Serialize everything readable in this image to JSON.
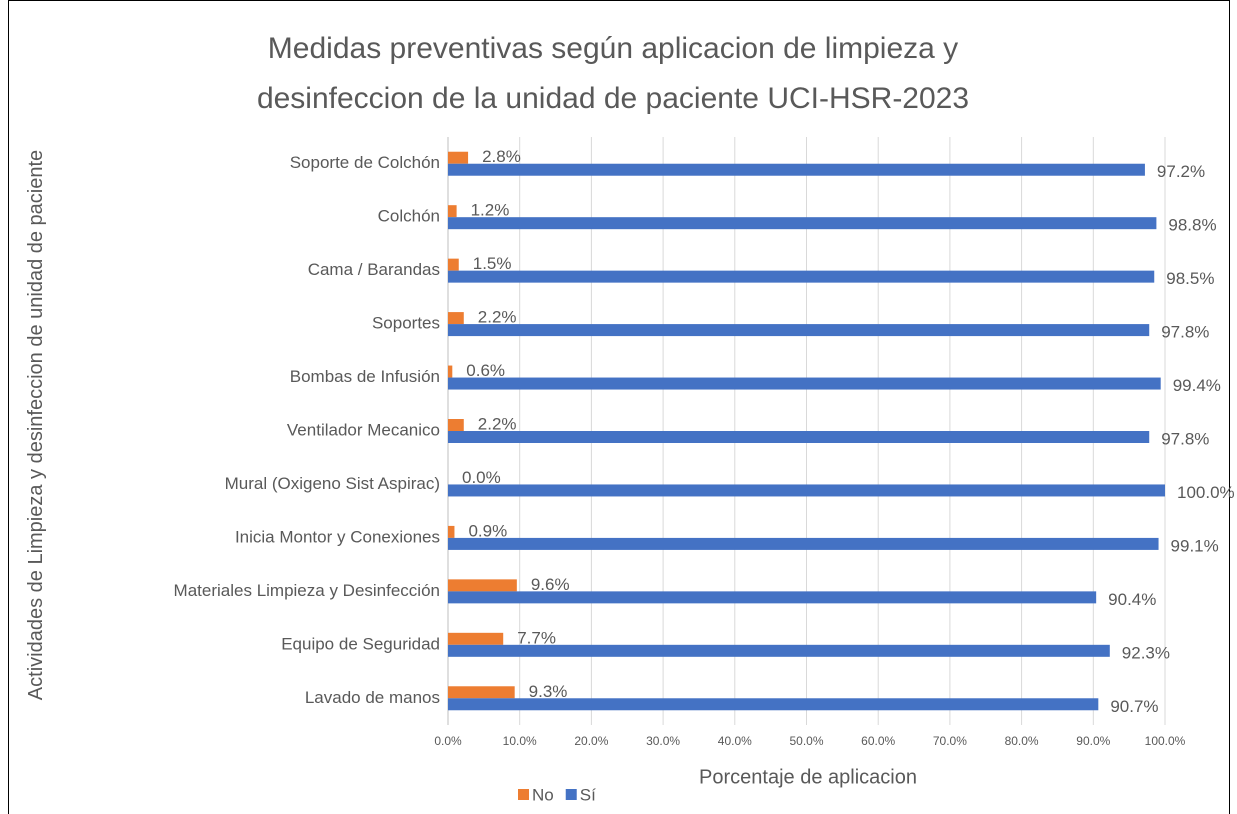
{
  "chart_data": {
    "type": "hbar",
    "title": "Medidas preventivas según  aplicacion de limpieza y desinfeccion de la unidad de paciente UCI-HSR-2023",
    "xlabel": "Porcentaje de aplicacion",
    "ylabel": "Actividades de Limpieza y desinfeccion de unidad de paciente",
    "categories": [
      "Soporte de Colchón",
      "Colchón",
      "Cama / Barandas",
      "Soportes",
      "Bombas de Infusión",
      "Ventilador Mecanico",
      "Mural (Oxigeno Sist Aspirac)",
      "Inicia Montor y Conexiones",
      "Materiales Limpieza y Desinfección",
      "Equipo de Seguridad",
      "Lavado de manos"
    ],
    "series": [
      {
        "name": "No",
        "color": "#ED7D31",
        "values": [
          2.8,
          1.2,
          1.5,
          2.2,
          0.6,
          2.2,
          0.0,
          0.9,
          9.6,
          7.7,
          9.3
        ],
        "value_labels": [
          "2.8%",
          "1.2%",
          "1.5%",
          "2.2%",
          "0.6%",
          "2.2%",
          "0.0%",
          "0.9%",
          "9.6%",
          "7.7%",
          "9.3%"
        ]
      },
      {
        "name": "Sí",
        "color": "#4472C4",
        "values": [
          97.2,
          98.8,
          98.5,
          97.8,
          99.4,
          97.8,
          100.0,
          99.1,
          90.4,
          92.3,
          90.7
        ],
        "value_labels": [
          "97.2%",
          "98.8%",
          "98.5%",
          "97.8%",
          "99.4%",
          "97.8%",
          "100.0%",
          "99.1%",
          "90.4%",
          "92.3%",
          "90.7%"
        ]
      }
    ],
    "xlim": [
      0,
      100
    ],
    "xticks": [
      {
        "value": 0,
        "label": "0.0%"
      },
      {
        "value": 10,
        "label": "10.0%"
      },
      {
        "value": 20,
        "label": "20.0%"
      },
      {
        "value": 30,
        "label": "30.0%"
      },
      {
        "value": 40,
        "label": "40.0%"
      },
      {
        "value": 50,
        "label": "50.0%"
      },
      {
        "value": 60,
        "label": "60.0%"
      },
      {
        "value": 70,
        "label": "70.0%"
      },
      {
        "value": 80,
        "label": "80.0%"
      },
      {
        "value": 90,
        "label": "90.0%"
      },
      {
        "value": 100,
        "label": "100.0%"
      }
    ],
    "grid": true,
    "legend": "bottom"
  }
}
